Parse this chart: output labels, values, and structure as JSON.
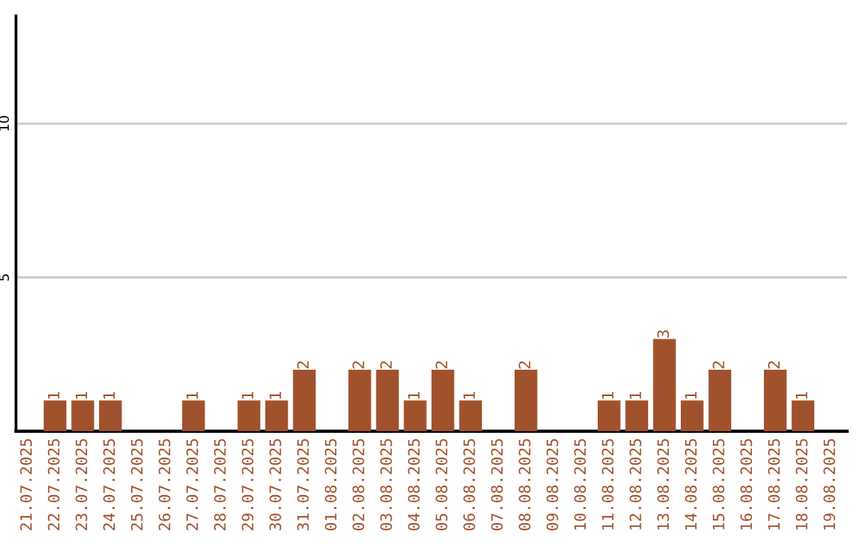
{
  "chart_data": {
    "type": "bar",
    "categories": [
      "21.07.2025",
      "22.07.2025",
      "23.07.2025",
      "24.07.2025",
      "25.07.2025",
      "26.07.2025",
      "27.07.2025",
      "28.07.2025",
      "29.07.2025",
      "30.07.2025",
      "31.07.2025",
      "01.08.2025",
      "02.08.2025",
      "03.08.2025",
      "04.08.2025",
      "05.08.2025",
      "06.08.2025",
      "07.08.2025",
      "08.08.2025",
      "09.08.2025",
      "10.08.2025",
      "11.08.2025",
      "12.08.2025",
      "13.08.2025",
      "14.08.2025",
      "15.08.2025",
      "16.08.2025",
      "17.08.2025",
      "18.08.2025",
      "19.08.2025"
    ],
    "values": [
      0,
      1,
      1,
      1,
      0,
      0,
      1,
      0,
      1,
      1,
      2,
      0,
      2,
      2,
      1,
      2,
      1,
      0,
      2,
      0,
      0,
      1,
      1,
      3,
      1,
      2,
      0,
      2,
      1,
      0
    ],
    "value_labels": [
      null,
      "1",
      "1",
      "1",
      null,
      null,
      "1",
      null,
      "1",
      "1",
      "2",
      null,
      "2",
      "2",
      "1",
      "2",
      "1",
      null,
      "2",
      null,
      null,
      "1",
      "1",
      "3",
      "1",
      "2",
      null,
      "2",
      "1",
      null
    ],
    "color": "#a0522d",
    "ylim": [
      0,
      13.5
    ],
    "yticks": [
      5,
      10
    ],
    "grid": "y"
  }
}
